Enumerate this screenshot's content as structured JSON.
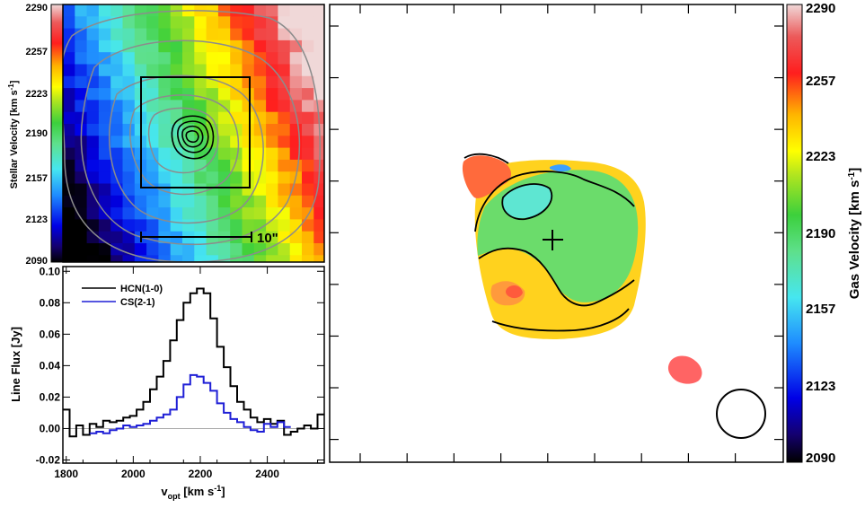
{
  "stellar_colorbar": {
    "label_main": "Stellar Velocity [km s",
    "label_sup": "-1",
    "label_end": "]",
    "ticks": [
      "2290",
      "2257",
      "2223",
      "2190",
      "2157",
      "2123",
      "2090"
    ]
  },
  "gas_colorbar": {
    "label_main": "Gas Velocity [km s",
    "label_sup": "-1",
    "label_end": "]",
    "ticks": [
      "2290",
      "2257",
      "2223",
      "2190",
      "2157",
      "2123",
      "2090"
    ]
  },
  "scale_bar_label": "10\"",
  "colors": {
    "hcn": "#000000",
    "cs": "#1f1fd6",
    "contour_gray": "#8c8c8c"
  },
  "chart_data": [
    {
      "type": "heatmap",
      "panel": "stellar velocity map",
      "colorbar_range": [
        2090,
        2290
      ],
      "colorbar_ticks": [
        2090,
        2123,
        2157,
        2190,
        2223,
        2257,
        2290
      ],
      "scale_bar": "10\""
    },
    {
      "type": "line",
      "panel": "line flux spectra",
      "xlabel": "v_opt [km s^-1]",
      "ylabel": "Line Flux [Jy]",
      "xlim": [
        1790,
        2570
      ],
      "ylim": [
        -0.022,
        0.103
      ],
      "x_ticks": [
        1800,
        2000,
        2200,
        2400
      ],
      "y_ticks": [
        "-0.02",
        "0.00",
        "0.02",
        "0.04",
        "0.06",
        "0.08",
        "0.10"
      ],
      "legend_position": "top-left",
      "x": [
        1800,
        1820,
        1840,
        1860,
        1880,
        1900,
        1920,
        1940,
        1960,
        1980,
        2000,
        2020,
        2040,
        2060,
        2080,
        2100,
        2120,
        2140,
        2160,
        2180,
        2200,
        2220,
        2240,
        2260,
        2280,
        2300,
        2320,
        2340,
        2360,
        2380,
        2400,
        2420,
        2440,
        2460,
        2480,
        2500,
        2520,
        2540,
        2560
      ],
      "series": [
        {
          "name": "HCN(1-0)",
          "values": [
            0.012,
            -0.005,
            0.002,
            -0.004,
            0.003,
            0.001,
            0.005,
            0.004,
            0.005,
            0.007,
            0.008,
            0.012,
            0.017,
            0.025,
            0.033,
            0.043,
            0.056,
            0.069,
            0.08,
            0.086,
            0.089,
            0.086,
            0.07,
            0.052,
            0.039,
            0.027,
            0.017,
            0.012,
            0.007,
            0.004,
            0.006,
            0.003,
            0.005,
            -0.004,
            -0.002,
            0.0,
            0.002,
            0.0,
            0.009
          ]
        },
        {
          "name": "CS(2-1)",
          "values": [
            null,
            null,
            null,
            null,
            -0.003,
            -0.002,
            -0.003,
            -0.001,
            0.0,
            0.002,
            0.001,
            0.002,
            0.003,
            0.005,
            0.007,
            0.009,
            0.012,
            0.02,
            0.028,
            0.034,
            0.033,
            0.029,
            0.024,
            0.016,
            0.01,
            0.006,
            0.004,
            0.001,
            -0.001,
            -0.002,
            0.003,
            0.001,
            0.004,
            0.001,
            null,
            null,
            null,
            null,
            null
          ]
        }
      ]
    },
    {
      "type": "heatmap",
      "panel": "gas velocity map",
      "colorbar_range": [
        2090,
        2290
      ],
      "colorbar_ticks": [
        2090,
        2123,
        2157,
        2190,
        2223,
        2257,
        2290
      ]
    }
  ],
  "spectrum_labels": {
    "xlabel_main": "v",
    "xlabel_sub": "opt",
    "xlabel_rest": " [km s",
    "xlabel_sup": "-1",
    "xlabel_end": "]",
    "ylabel": "Line Flux [Jy]"
  }
}
